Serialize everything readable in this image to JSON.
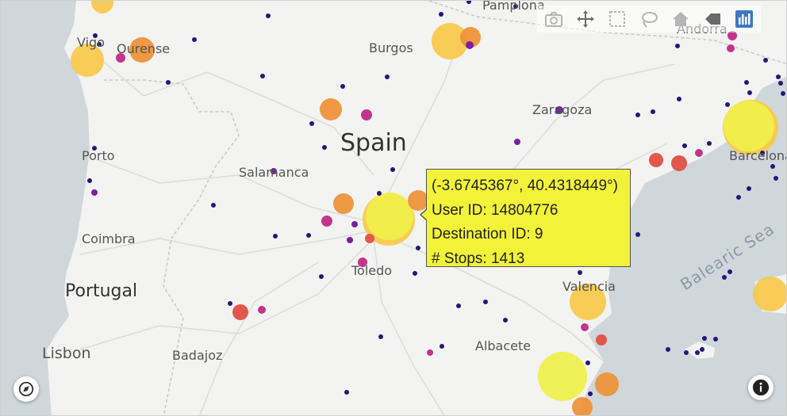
{
  "map": {
    "places": {
      "vigo": "Vigo",
      "ourense": "Ourense",
      "pamplona": "Pamplona",
      "burgos": "Burgos",
      "andorra": "Andorra",
      "zaragoza": "Zaragoza",
      "spain": "Spain",
      "barcelona": "Barcelona",
      "porto": "Porto",
      "salamanca": "Salamanca",
      "coimbra": "Coimbra",
      "toledo": "Toledo",
      "portugal": "Portugal",
      "valencia": "Valencia",
      "lisbon": "Lisbon",
      "badajoz": "Badajoz",
      "albacete": "Albacete",
      "balearic_sea": "Balearic Sea"
    },
    "colors": {
      "land": "#f3f3f2",
      "sea": "#cfd7db",
      "yellow": "#f0f04a",
      "yellow_orange": "#f8c94a",
      "orange": "#ef9136",
      "red": "#e2574c",
      "magenta": "#c3358a",
      "purple": "#7b1fa2",
      "navy": "#27157a"
    }
  },
  "modebar": {
    "icons": [
      "camera-icon",
      "pan-icon",
      "box-select-icon",
      "lasso-icon",
      "home-icon",
      "reset-icon",
      "plotly-logo-icon"
    ]
  },
  "tooltip": {
    "coords": "(-3.6745367°, 40.4318449°)",
    "user": "User ID: 14804776",
    "destination": "Destination ID: 9",
    "stops": "# Stops: 1413"
  },
  "controls": {
    "compass": "compass-icon",
    "info": "info-icon"
  }
}
